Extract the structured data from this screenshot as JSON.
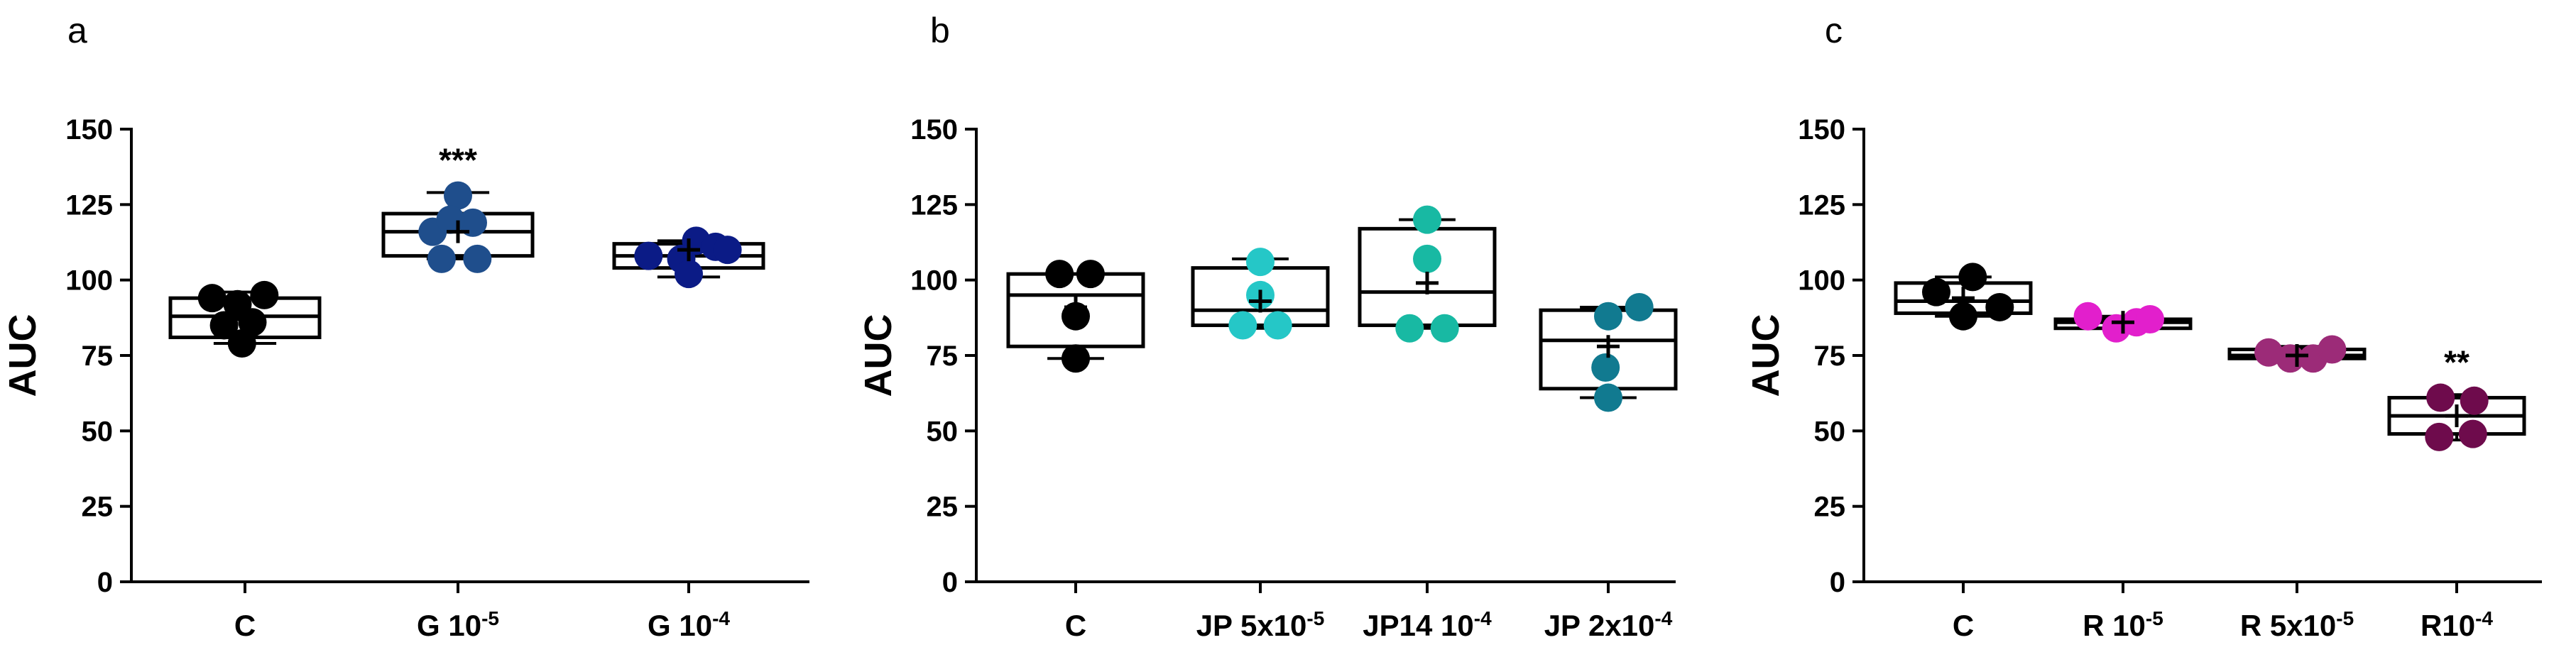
{
  "chart_data": [
    {
      "type": "box",
      "panel_label": "a",
      "ylabel": "AUC",
      "ylim": [
        0,
        150
      ],
      "yticks": [
        "0",
        "25",
        "50",
        "75",
        "100",
        "125",
        "150"
      ],
      "categories": [
        {
          "base": "C",
          "sup": ""
        },
        {
          "base": "G 10",
          "sup": "-5"
        },
        {
          "base": "G 10",
          "sup": "-4"
        }
      ],
      "boxes": [
        {
          "min": 79,
          "q1": 81,
          "median": 88,
          "q3": 94,
          "max": 96,
          "mean": 87,
          "color": "#000000",
          "points": [
            [
              -0.22,
              94
            ],
            [
              -0.05,
              92
            ],
            [
              0.13,
              95
            ],
            [
              -0.14,
              85
            ],
            [
              0.05,
              86
            ],
            [
              -0.02,
              79
            ]
          ]
        },
        {
          "min": 107,
          "q1": 108,
          "median": 116,
          "q3": 122,
          "max": 129,
          "mean": 116,
          "color": "#1f4e8c",
          "points": [
            [
              -0.17,
              116
            ],
            [
              0.0,
              128
            ],
            [
              0.1,
              119
            ],
            [
              -0.05,
              120
            ],
            [
              -0.11,
              107
            ],
            [
              0.13,
              107
            ]
          ],
          "annotation": "***"
        },
        {
          "min": 101,
          "q1": 104,
          "median": 108,
          "q3": 112,
          "max": 113,
          "mean": 110,
          "color": "#0b1b86",
          "points": [
            [
              -0.27,
              108
            ],
            [
              0.05,
              113
            ],
            [
              0.18,
              111
            ],
            [
              0.26,
              110
            ],
            [
              -0.05,
              107
            ],
            [
              0.0,
              102
            ]
          ]
        }
      ]
    },
    {
      "type": "box",
      "panel_label": "b",
      "ylabel": "AUC",
      "ylim": [
        0,
        150
      ],
      "yticks": [
        "0",
        "25",
        "50",
        "75",
        "100",
        "125",
        "150"
      ],
      "categories": [
        {
          "base": "C",
          "sup": ""
        },
        {
          "base": "JP 5x10",
          "sup": "-5"
        },
        {
          "base": "JP14 10",
          "sup": "-4"
        },
        {
          "base": "JP 2x10",
          "sup": "-4"
        }
      ],
      "boxes": [
        {
          "min": 74,
          "q1": 78,
          "median": 95,
          "q3": 102,
          "max": 102,
          "mean": 91,
          "color": "#000000",
          "points": [
            [
              -0.12,
              102
            ],
            [
              0.11,
              102
            ],
            [
              0.0,
              88
            ],
            [
              0.0,
              74
            ]
          ]
        },
        {
          "min": 84,
          "q1": 85,
          "median": 90,
          "q3": 104,
          "max": 107,
          "mean": 93,
          "color": "#25c7c7",
          "points": [
            [
              0.0,
              106
            ],
            [
              0.0,
              95
            ],
            [
              -0.13,
              85
            ],
            [
              0.13,
              85
            ]
          ]
        },
        {
          "min": 84,
          "q1": 85,
          "median": 96,
          "q3": 117,
          "max": 120,
          "mean": 99,
          "color": "#18b9a3",
          "points": [
            [
              0.0,
              120
            ],
            [
              0.0,
              107
            ],
            [
              -0.13,
              84
            ],
            [
              0.13,
              84
            ]
          ]
        },
        {
          "min": 61,
          "q1": 64,
          "median": 80,
          "q3": 90,
          "max": 91,
          "mean": 78,
          "color": "#117a90",
          "points": [
            [
              0.0,
              88
            ],
            [
              0.23,
              91
            ],
            [
              -0.02,
              71
            ],
            [
              0.0,
              61
            ]
          ]
        }
      ]
    },
    {
      "type": "box",
      "panel_label": "c",
      "ylabel": "AUC",
      "ylim": [
        0,
        150
      ],
      "yticks": [
        "0",
        "25",
        "50",
        "75",
        "100",
        "125",
        "150"
      ],
      "categories": [
        {
          "base": "C",
          "sup": ""
        },
        {
          "base": "R 10",
          "sup": "-5"
        },
        {
          "base": "R 5x10",
          "sup": "-5"
        },
        {
          "base": "R10",
          "sup": "-4"
        }
      ],
      "boxes": [
        {
          "min": 88,
          "q1": 89,
          "median": 93,
          "q3": 99,
          "max": 101,
          "mean": 94,
          "color": "#000000",
          "points": [
            [
              -0.2,
              96
            ],
            [
              0.07,
              101
            ],
            [
              0.27,
              91
            ],
            [
              0.0,
              88
            ]
          ]
        },
        {
          "min": 84,
          "q1": 84,
          "median": 86,
          "q3": 87,
          "max": 88,
          "mean": 86,
          "color": "#e21fcc",
          "points": [
            [
              -0.26,
              88
            ],
            [
              0.1,
              86
            ],
            [
              -0.05,
              84
            ],
            [
              0.2,
              87
            ]
          ]
        },
        {
          "min": 73,
          "q1": 74,
          "median": 75,
          "q3": 77,
          "max": 78,
          "mean": 75,
          "color": "#9c2b78",
          "points": [
            [
              -0.21,
              76
            ],
            [
              -0.05,
              74
            ],
            [
              0.12,
              74
            ],
            [
              0.26,
              77
            ]
          ]
        },
        {
          "min": 47,
          "q1": 49,
          "median": 55,
          "q3": 61,
          "max": 62,
          "mean": 55,
          "color": "#6e0b4c",
          "points": [
            [
              -0.12,
              61
            ],
            [
              0.13,
              60
            ],
            [
              -0.13,
              48
            ],
            [
              0.12,
              49
            ]
          ],
          "annotation": "**"
        }
      ]
    }
  ]
}
